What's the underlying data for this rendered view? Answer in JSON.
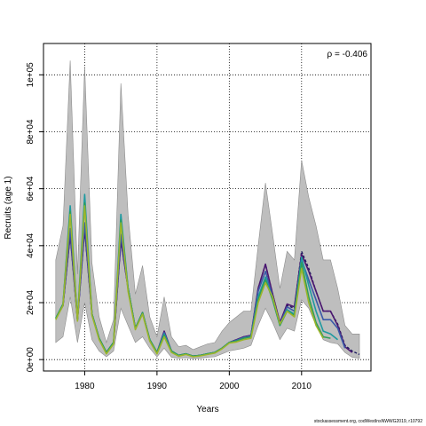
{
  "chart_data": {
    "type": "line",
    "title": "",
    "xlabel": "Years",
    "ylabel": "Recruits (age 1)",
    "xlim": [
      1974.3,
      2019.6
    ],
    "ylim": [
      -4000,
      111000
    ],
    "x_ticks": [
      1980,
      1990,
      2000,
      2010
    ],
    "x_tick_labels": [
      "1980",
      "1990",
      "2000",
      "2010"
    ],
    "y_ticks": [
      0,
      20000,
      40000,
      60000,
      80000,
      100000
    ],
    "y_tick_labels": [
      "0e+00",
      "2e+04",
      "4e+04",
      "6e+04",
      "8e+04",
      "1e+05"
    ],
    "grid": true,
    "annotation": "ρ = -0.406",
    "band_color": "#bebebe",
    "band": {
      "x": [
        1976,
        1977,
        1978,
        1979,
        1980,
        1981,
        1982,
        1983,
        1984,
        1985,
        1986,
        1987,
        1988,
        1989,
        1990,
        1991,
        1992,
        1993,
        1994,
        1995,
        1996,
        1997,
        1998,
        1999,
        2000,
        2001,
        2002,
        2003,
        2004,
        2005,
        2006,
        2007,
        2008,
        2009,
        2010,
        2011,
        2012,
        2013,
        2014,
        2015,
        2016,
        2017,
        2018
      ],
      "lower": [
        6000,
        8000,
        22000,
        6000,
        20000,
        7000,
        3000,
        1000,
        3000,
        18000,
        12000,
        6000,
        8000,
        4000,
        1000,
        4000,
        800,
        500,
        700,
        300,
        500,
        800,
        1000,
        2000,
        3000,
        3500,
        4000,
        5000,
        12000,
        18000,
        13000,
        7000,
        11000,
        10000,
        21000,
        18000,
        12000,
        7000,
        6000,
        5500,
        2500,
        800,
        500
      ],
      "upper": [
        35000,
        47000,
        105000,
        30000,
        103000,
        34000,
        15000,
        6000,
        14000,
        97000,
        51000,
        23000,
        33000,
        15000,
        8000,
        22000,
        8000,
        4500,
        5000,
        3500,
        4500,
        5500,
        6000,
        10000,
        13000,
        15000,
        17000,
        17000,
        40000,
        62000,
        44000,
        25000,
        38000,
        35000,
        70000,
        57000,
        47000,
        35000,
        35000,
        25000,
        12000,
        9000,
        9000
      ]
    },
    "series": [
      {
        "color": "#1a1a5e",
        "dashed": true,
        "values_x": [
          1976,
          1977,
          1978,
          1979,
          1980,
          1981,
          1982,
          1983,
          1984,
          1985,
          1986,
          1987,
          1988,
          1989,
          1990,
          1991,
          1992,
          1993,
          1994,
          1995,
          1996,
          1997,
          1998,
          1999,
          2000,
          2001,
          2002,
          2003,
          2004,
          2005,
          2006,
          2007,
          2008,
          2009,
          2010,
          2011,
          2012,
          2013,
          2014,
          2015,
          2016,
          2017,
          2018
        ],
        "values": [
          14500,
          19000,
          44000,
          14000,
          46000,
          16000,
          7500,
          2500,
          6000,
          42000,
          25000,
          11000,
          16500,
          7000,
          2500,
          9500,
          3000,
          1500,
          2000,
          1200,
          1500,
          2000,
          2500,
          4000,
          6000,
          7000,
          8000,
          8500,
          25000,
          33500,
          23000,
          13000,
          19000,
          18000,
          38000,
          32000,
          24000,
          17000,
          17000,
          12500,
          5000,
          3000,
          1800
        ]
      },
      {
        "color": "#4b1670",
        "dashed": false,
        "values_x": [
          1976,
          1977,
          1978,
          1979,
          1980,
          1981,
          1982,
          1983,
          1984,
          1985,
          1986,
          1987,
          1988,
          1989,
          1990,
          1991,
          1992,
          1993,
          1994,
          1995,
          1996,
          1997,
          1998,
          1999,
          2000,
          2001,
          2002,
          2003,
          2004,
          2005,
          2006,
          2007,
          2008,
          2009,
          2010,
          2011,
          2012,
          2013,
          2014,
          2015,
          2016,
          2017
        ],
        "values": [
          14500,
          19000,
          44000,
          14000,
          46000,
          16000,
          7500,
          2500,
          6000,
          42000,
          25000,
          11000,
          16500,
          7000,
          2500,
          10000,
          3000,
          1500,
          2000,
          1200,
          1500,
          2000,
          2500,
          4000,
          6000,
          7000,
          8000,
          8500,
          25000,
          33500,
          23000,
          13000,
          19500,
          18500,
          37000,
          31000,
          24000,
          17000,
          17000,
          12000,
          4500,
          2500
        ]
      },
      {
        "color": "#3b5ba8",
        "dashed": false,
        "values_x": [
          1976,
          1977,
          1978,
          1979,
          1980,
          1981,
          1982,
          1983,
          1984,
          1985,
          1986,
          1987,
          1988,
          1989,
          1990,
          1991,
          1992,
          1993,
          1994,
          1995,
          1996,
          1997,
          1998,
          1999,
          2000,
          2001,
          2002,
          2003,
          2004,
          2005,
          2006,
          2007,
          2008,
          2009,
          2010,
          2011,
          2012,
          2013,
          2014,
          2015,
          2016
        ],
        "values": [
          14500,
          19000,
          46000,
          14000,
          48000,
          16000,
          7500,
          2500,
          6000,
          44000,
          25000,
          11000,
          16500,
          7000,
          2500,
          9500,
          3000,
          1500,
          2000,
          1200,
          1500,
          2000,
          2500,
          4000,
          6000,
          6800,
          7800,
          8300,
          24000,
          31000,
          22000,
          12500,
          18500,
          17000,
          35000,
          28000,
          21000,
          14000,
          14000,
          11000,
          4000
        ]
      },
      {
        "color": "#1e9aa0",
        "dashed": false,
        "values_x": [
          1976,
          1977,
          1978,
          1979,
          1980,
          1981,
          1982,
          1983,
          1984,
          1985,
          1986,
          1987,
          1988,
          1989,
          1990,
          1991,
          1992,
          1993,
          1994,
          1995,
          1996,
          1997,
          1998,
          1999,
          2000,
          2001,
          2002,
          2003,
          2004,
          2005,
          2006,
          2007,
          2008,
          2009,
          2010,
          2011,
          2012,
          2013,
          2014,
          2015
        ],
        "values": [
          14500,
          19500,
          54000,
          14000,
          58000,
          16000,
          7500,
          2500,
          6000,
          51000,
          25000,
          11000,
          16500,
          7000,
          2500,
          9000,
          3000,
          1500,
          2000,
          1200,
          1500,
          2000,
          2500,
          4000,
          6000,
          6500,
          7500,
          8000,
          22000,
          29000,
          21000,
          12000,
          17500,
          16000,
          36000,
          26000,
          17000,
          10000,
          9000,
          7000
        ]
      },
      {
        "color": "#2e9e5a",
        "dashed": false,
        "values_x": [
          1976,
          1977,
          1978,
          1979,
          1980,
          1981,
          1982,
          1983,
          1984,
          1985,
          1986,
          1987,
          1988,
          1989,
          1990,
          1991,
          1992,
          1993,
          1994,
          1995,
          1996,
          1997,
          1998,
          1999,
          2000,
          2001,
          2002,
          2003,
          2004,
          2005,
          2006,
          2007,
          2008,
          2009,
          2010,
          2011,
          2012,
          2013,
          2014
        ],
        "values": [
          14500,
          19500,
          52000,
          14000,
          55000,
          16000,
          7500,
          2500,
          6000,
          49000,
          25000,
          11000,
          16500,
          7000,
          2500,
          8500,
          3000,
          1500,
          2000,
          1200,
          1500,
          2000,
          2500,
          4000,
          6000,
          6500,
          7500,
          8000,
          21000,
          28000,
          21000,
          12000,
          17000,
          15500,
          34000,
          22000,
          13000,
          8000,
          7500
        ]
      },
      {
        "color": "#9cb52c",
        "dashed": false,
        "values_x": [
          1976,
          1977,
          1978,
          1979,
          1980,
          1981,
          1982,
          1983,
          1984,
          1985,
          1986,
          1987,
          1988,
          1989,
          1990,
          1991,
          1992,
          1993,
          1994,
          1995,
          1996,
          1997,
          1998,
          1999,
          2000,
          2001,
          2002,
          2003,
          2004,
          2005,
          2006,
          2007,
          2008,
          2009,
          2010,
          2011,
          2012,
          2013
        ],
        "values": [
          14000,
          19000,
          51000,
          13500,
          54000,
          15500,
          7000,
          2000,
          5500,
          48000,
          24000,
          10500,
          16000,
          6500,
          2000,
          8000,
          2500,
          1200,
          1800,
          1000,
          1300,
          1800,
          2300,
          3800,
          5800,
          6200,
          7000,
          7500,
          20000,
          27000,
          22000,
          12500,
          17000,
          15000,
          32000,
          20000,
          12000,
          7500
        ]
      }
    ]
  },
  "footer": "stockassessment.org, codWestInsNWWG2019, r10792"
}
